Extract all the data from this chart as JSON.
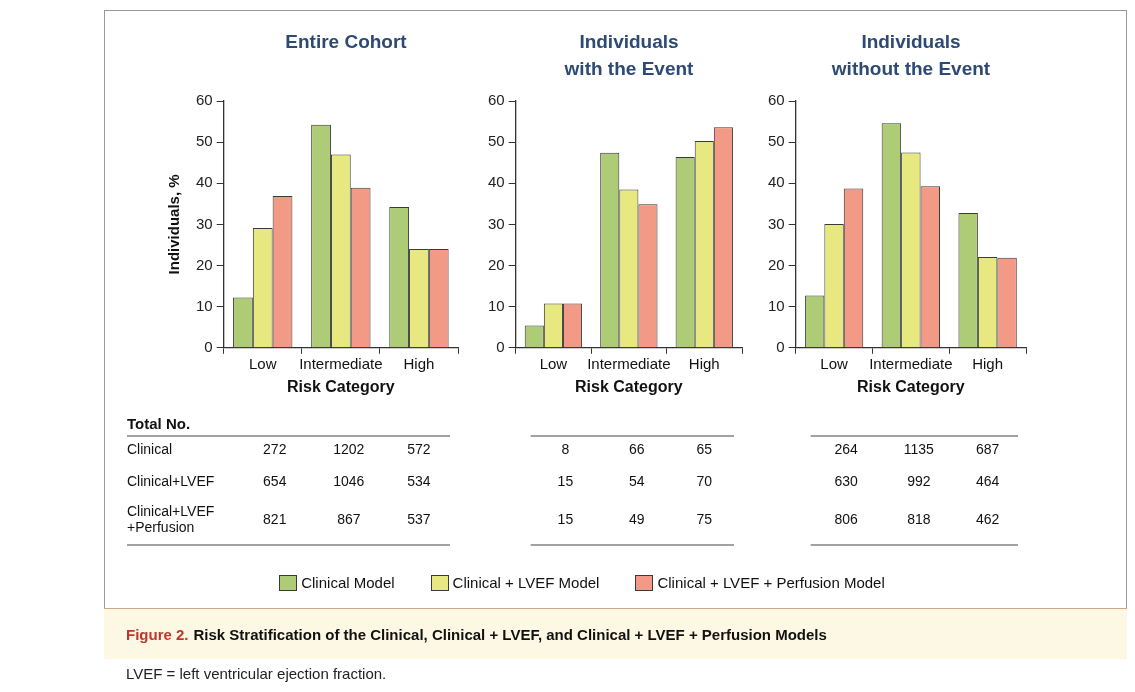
{
  "chart_data": [
    {
      "type": "bar",
      "title": "Entire Cohort",
      "xlabel": "Risk Category",
      "ylabel": "Individuals, %",
      "categories": [
        "Low",
        "Intermediate",
        "High"
      ],
      "ylim": [
        0,
        60
      ],
      "yticks": [
        0,
        10,
        20,
        30,
        40,
        50,
        60
      ],
      "grid": false,
      "legend": "bottom",
      "annotations": [
        "Total No.",
        "Clinical",
        "272",
        "1202",
        "572",
        "Clinical+LVEF",
        "654",
        "1046",
        "534",
        "Clinical+LVEF +Perfusion",
        "821",
        "867",
        "537"
      ],
      "series": [
        {
          "name": "Clinical Model",
          "color": "#aecb76",
          "values": [
            12.2,
            54.2,
            34.2
          ]
        },
        {
          "name": "Clinical + LVEF Model",
          "color": "#e8e880",
          "values": [
            29.1,
            47.0,
            24.0
          ]
        },
        {
          "name": "Clinical + LVEF + Perfusion Model",
          "color": "#f39a86",
          "values": [
            36.9,
            38.9,
            24.0
          ]
        }
      ]
    },
    {
      "type": "bar",
      "title": "Individuals with the Event",
      "xlabel": "Risk Category",
      "categories": [
        "Low",
        "Intermediate",
        "High"
      ],
      "ylim": [
        0,
        60
      ],
      "yticks": [
        0,
        10,
        20,
        30,
        40,
        50,
        60
      ],
      "grid": false,
      "annotations": [
        "8",
        "66",
        "65",
        "15",
        "54",
        "70",
        "15",
        "49",
        "75"
      ],
      "series": [
        {
          "color": "#aecb76",
          "values": [
            5.4,
            47.4,
            46.4
          ]
        },
        {
          "color": "#e8e880",
          "values": [
            10.8,
            38.5,
            50.3
          ]
        },
        {
          "color": "#f39a86",
          "values": [
            10.8,
            34.9,
            53.6
          ]
        }
      ]
    },
    {
      "type": "bar",
      "title": "Individuals without the Event",
      "xlabel": "Risk Category",
      "categories": [
        "Low",
        "Intermediate",
        "High"
      ],
      "ylim": [
        0,
        60
      ],
      "yticks": [
        0,
        10,
        20,
        30,
        40,
        50,
        60
      ],
      "grid": false,
      "annotations": [
        "264",
        "1135",
        "687",
        "630",
        "992",
        "464",
        "806",
        "818",
        "462"
      ],
      "series": [
        {
          "color": "#aecb76",
          "values": [
            12.7,
            54.6,
            32.8
          ]
        },
        {
          "color": "#e8e880",
          "values": [
            30.1,
            47.5,
            22.1
          ]
        },
        {
          "color": "#f39a86",
          "values": [
            38.7,
            39.3,
            21.9
          ]
        }
      ]
    },
    {
      "type": "other",
      "title": "Figure 2.",
      "subtitle": "Risk Stratification of the Clinical, Clinical + LVEF, and Clinical + LVEF + Perfusion Models",
      "annotations": [
        "LVEF = left ventricular ejection fraction."
      ]
    }
  ]
}
